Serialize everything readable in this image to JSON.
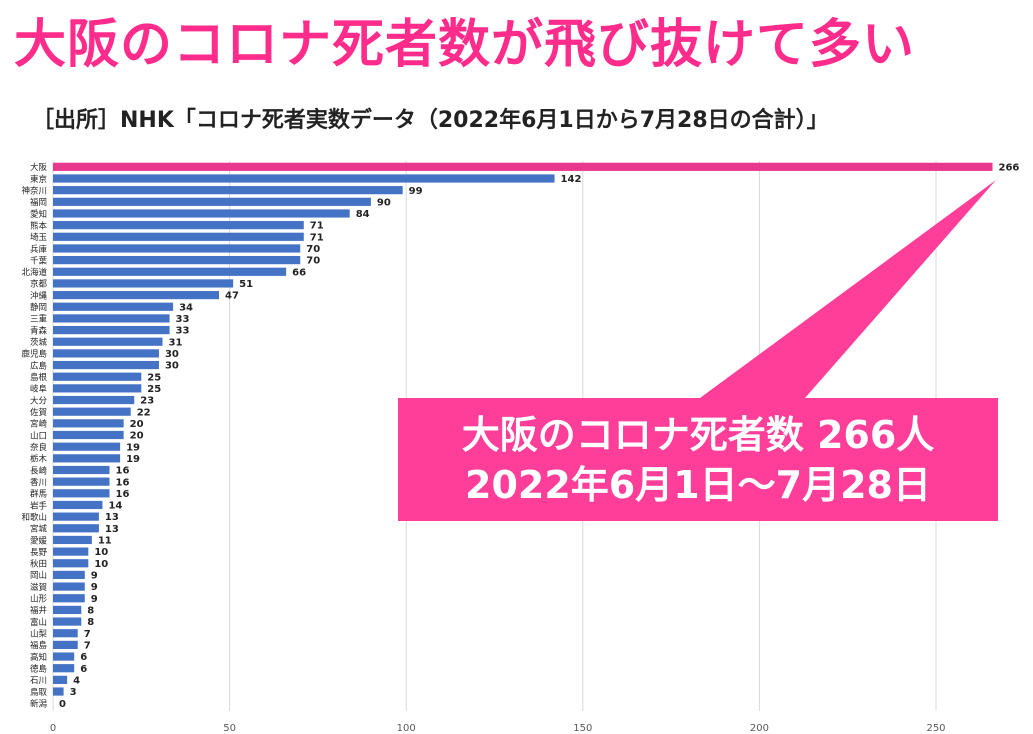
{
  "headline": "大阪のコロナ死者数が飛び抜けて多い",
  "source": "［出所］NHK「コロナ死者実数データ（2022年6月1日から7月28日の合計）」",
  "callout": {
    "line1": "大阪のコロナ死者数 266人",
    "line2": "2022年6月1日～7月28日"
  },
  "colors": {
    "headline": "#ff2c8c",
    "highlight_bar": "#e8388e",
    "bar": "#4472c4",
    "callout": "#ff3e9a"
  },
  "chart_data": {
    "type": "bar",
    "orientation": "horizontal",
    "categories": [
      "大阪",
      "東京",
      "神奈川",
      "福岡",
      "愛知",
      "熊本",
      "埼玉",
      "兵庫",
      "千葉",
      "北海道",
      "京都",
      "沖縄",
      "静岡",
      "三重",
      "青森",
      "茨城",
      "鹿児島",
      "広島",
      "島根",
      "岐阜",
      "大分",
      "佐賀",
      "宮崎",
      "山口",
      "奈良",
      "栃木",
      "長崎",
      "香川",
      "群馬",
      "岩手",
      "和歌山",
      "宮城",
      "愛媛",
      "長野",
      "秋田",
      "岡山",
      "滋賀",
      "山形",
      "福井",
      "富山",
      "山梨",
      "福島",
      "高知",
      "徳島",
      "石川",
      "鳥取",
      "新潟"
    ],
    "values": [
      266,
      142,
      99,
      90,
      84,
      71,
      71,
      70,
      70,
      66,
      51,
      47,
      34,
      33,
      33,
      31,
      30,
      30,
      25,
      25,
      23,
      22,
      20,
      20,
      19,
      19,
      16,
      16,
      16,
      14,
      13,
      13,
      11,
      10,
      10,
      9,
      9,
      9,
      8,
      8,
      7,
      7,
      6,
      6,
      4,
      3,
      0
    ],
    "highlight": "大阪",
    "xlim": [
      0,
      270
    ],
    "xticks": [
      0,
      50,
      100,
      150,
      200,
      250
    ],
    "grid": true,
    "title": "",
    "xlabel": "",
    "ylabel": ""
  }
}
